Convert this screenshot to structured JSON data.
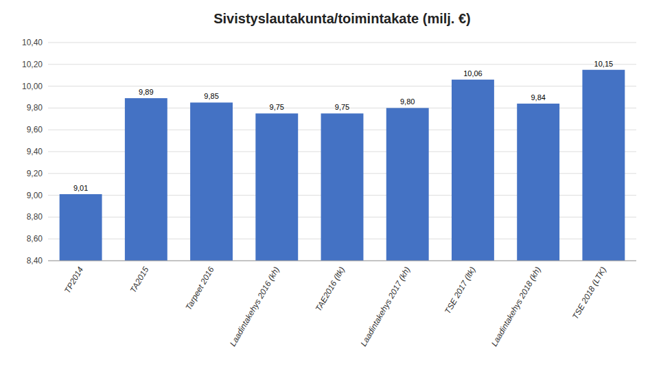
{
  "chart_data": {
    "type": "bar",
    "title": "Sivistyslautakunta/toimintakate (milj. €)",
    "categories": [
      "TP2014",
      "TA2015",
      "Tarpeet 2016",
      "Laadintakehys 2016 (kh)",
      "TAE2016 (ltk)",
      "Laadintakehys 2017 (kh)",
      "TSE 2017 (ltk)",
      "Laadintakehys 2018 (kh)",
      "TSE 2018 (LTK)"
    ],
    "values": [
      9.01,
      9.89,
      9.85,
      9.75,
      9.75,
      9.8,
      10.06,
      9.84,
      10.15
    ],
    "value_labels": [
      "9,01",
      "9,89",
      "9,85",
      "9,75",
      "9,75",
      "9,80",
      "10,06",
      "9,84",
      "10,15"
    ],
    "color": "#4472C4",
    "ylim": [
      8.4,
      10.4
    ],
    "yticks": [
      {
        "value": 8.4,
        "label": "8,40"
      },
      {
        "value": 8.6,
        "label": "8,60"
      },
      {
        "value": 8.8,
        "label": "8,80"
      },
      {
        "value": 9.0,
        "label": "9,00"
      },
      {
        "value": 9.2,
        "label": "9,20"
      },
      {
        "value": 9.4,
        "label": "9,40"
      },
      {
        "value": 9.6,
        "label": "9,60"
      },
      {
        "value": 9.8,
        "label": "9,80"
      },
      {
        "value": 10.0,
        "label": "10,00"
      },
      {
        "value": 10.2,
        "label": "10,20"
      },
      {
        "value": 10.4,
        "label": "10,40"
      }
    ],
    "grid": true,
    "data_labels": true
  }
}
